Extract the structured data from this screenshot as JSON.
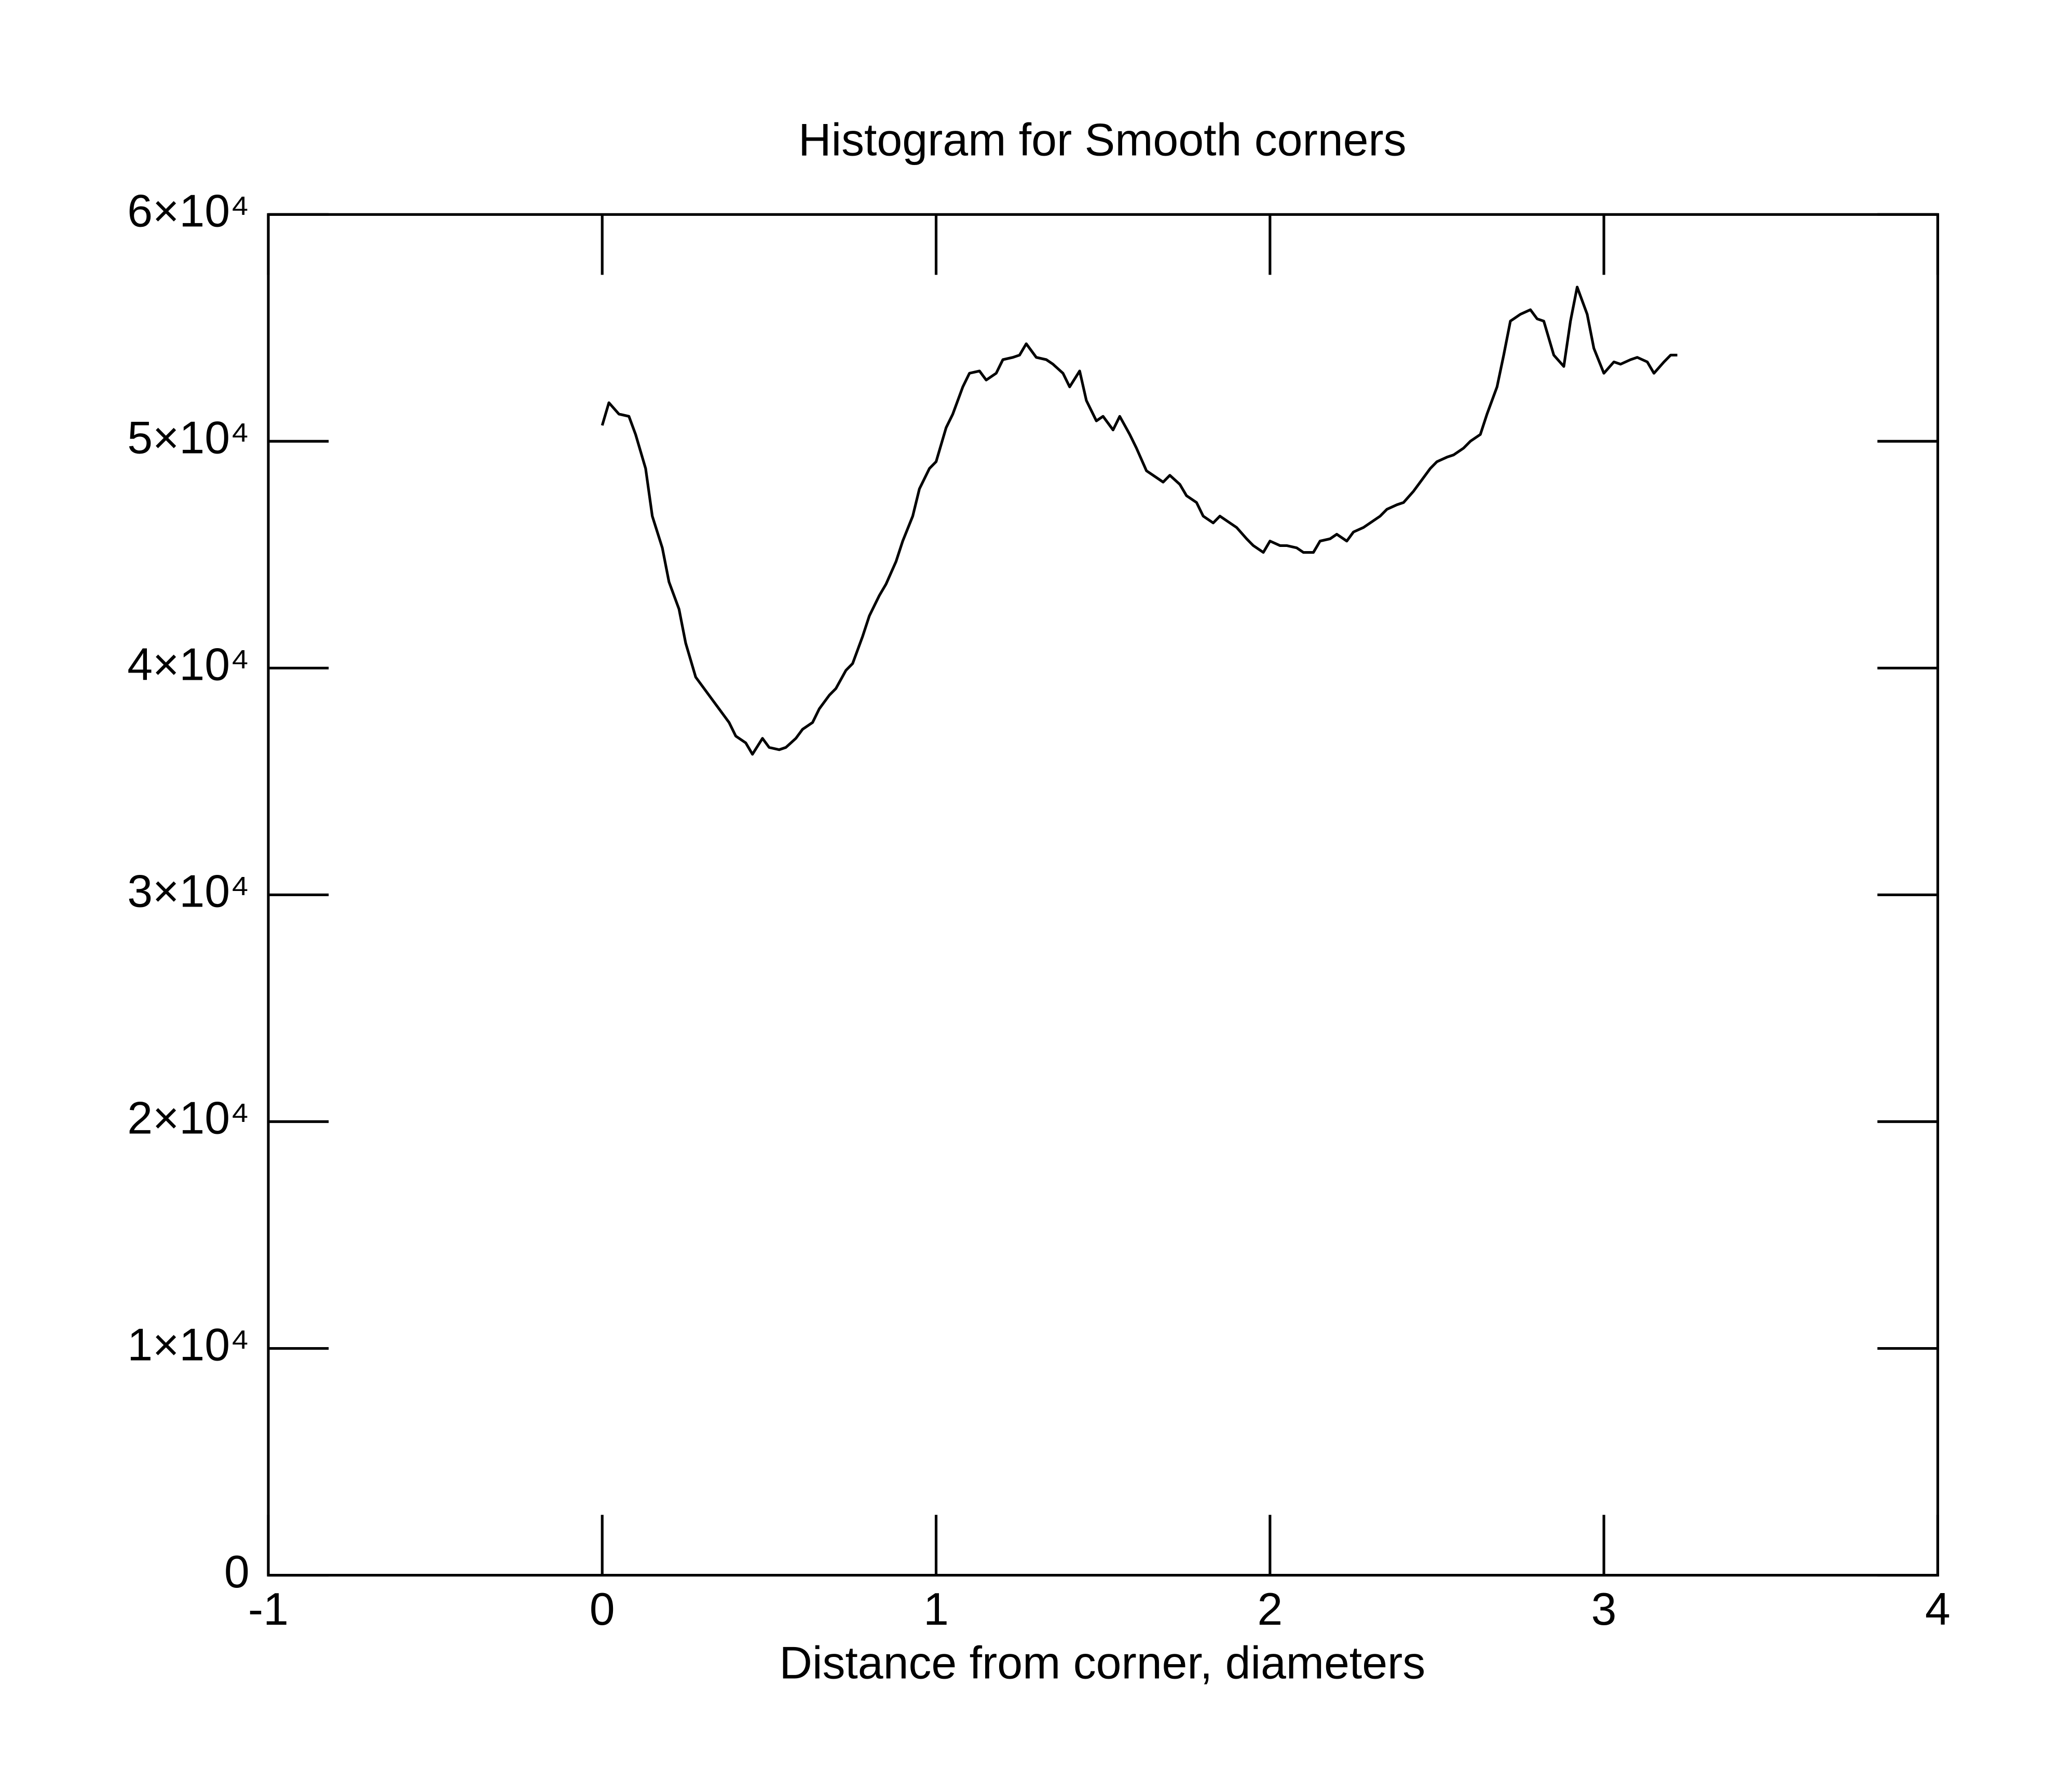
{
  "chart_data": {
    "type": "line",
    "title": "Histogram for Smooth corners",
    "x_label": "Distance from corner, diameters",
    "xlim": [
      -1,
      4
    ],
    "ylim": [
      0,
      60000
    ],
    "xticks": [
      -1,
      0,
      1,
      2,
      3,
      4
    ],
    "yticks": [
      0,
      {
        "value": 10000,
        "label": "1×10⁴"
      },
      {
        "value": 20000,
        "label": "2×10⁴"
      },
      {
        "value": 30000,
        "label": "3×10⁴"
      },
      {
        "value": 40000,
        "label": "4×10⁴"
      },
      {
        "value": 50000,
        "label": "5×10⁴"
      },
      {
        "value": 60000,
        "label": "6×10⁴"
      }
    ],
    "grid": false,
    "color": "#000000",
    "x": [
      0,
      0.02,
      0.05,
      0.08,
      0.1,
      0.13,
      0.15,
      0.18,
      0.2,
      0.23,
      0.25,
      0.28,
      0.3,
      0.33,
      0.35,
      0.38,
      0.4,
      0.43,
      0.45,
      0.48,
      0.5,
      0.53,
      0.55,
      0.58,
      0.6,
      0.63,
      0.65,
      0.68,
      0.7,
      0.73,
      0.75,
      0.78,
      0.8,
      0.83,
      0.85,
      0.88,
      0.9,
      0.93,
      0.95,
      0.98,
      1.0,
      1.03,
      1.05,
      1.08,
      1.1,
      1.13,
      1.15,
      1.18,
      1.2,
      1.23,
      1.25,
      1.27,
      1.3,
      1.33,
      1.35,
      1.38,
      1.4,
      1.43,
      1.45,
      1.48,
      1.5,
      1.53,
      1.55,
      1.58,
      1.6,
      1.63,
      1.65,
      1.68,
      1.7,
      1.73,
      1.75,
      1.78,
      1.8,
      1.83,
      1.85,
      1.88,
      1.9,
      1.93,
      1.95,
      1.98,
      2.0,
      2.03,
      2.05,
      2.08,
      2.1,
      2.13,
      2.15,
      2.18,
      2.2,
      2.23,
      2.25,
      2.28,
      2.3,
      2.33,
      2.35,
      2.38,
      2.4,
      2.43,
      2.45,
      2.48,
      2.5,
      2.53,
      2.55,
      2.58,
      2.6,
      2.63,
      2.65,
      2.68,
      2.7,
      2.72,
      2.75,
      2.78,
      2.8,
      2.82,
      2.85,
      2.88,
      2.9,
      2.92,
      2.95,
      2.97,
      3.0,
      3.03,
      3.05,
      3.08,
      3.1,
      3.13,
      3.15,
      3.18,
      3.2,
      3.22
    ],
    "values": [
      50700,
      51700,
      51200,
      51100,
      50300,
      48800,
      46700,
      45300,
      43800,
      42600,
      41100,
      39600,
      39200,
      38600,
      38200,
      37600,
      37000,
      36700,
      36200,
      36900,
      36500,
      36400,
      36500,
      36900,
      37300,
      37600,
      38200,
      38800,
      39100,
      39900,
      40200,
      41400,
      42300,
      43200,
      43700,
      44700,
      45600,
      46700,
      47900,
      48800,
      49100,
      50600,
      51200,
      52400,
      53000,
      53100,
      52700,
      53000,
      53600,
      53700,
      53800,
      54300,
      53700,
      53600,
      53400,
      53000,
      52400,
      53100,
      51800,
      50900,
      51100,
      50500,
      51100,
      50300,
      49700,
      48700,
      48500,
      48200,
      48500,
      48100,
      47600,
      47300,
      46700,
      46400,
      46700,
      46400,
      46200,
      45700,
      45400,
      45100,
      45600,
      45400,
      45400,
      45300,
      45100,
      45100,
      45600,
      45700,
      45900,
      45600,
      46000,
      46200,
      46400,
      46700,
      47000,
      47200,
      47300,
      47800,
      48200,
      48800,
      49100,
      49300,
      49400,
      49700,
      50000,
      50300,
      51200,
      52400,
      53800,
      55300,
      55600,
      55800,
      55400,
      55300,
      53800,
      53300,
      55300,
      56800,
      55600,
      54100,
      53000,
      53500,
      53400,
      53600,
      53700,
      53500,
      53000,
      53500,
      53800,
      53800
    ]
  }
}
